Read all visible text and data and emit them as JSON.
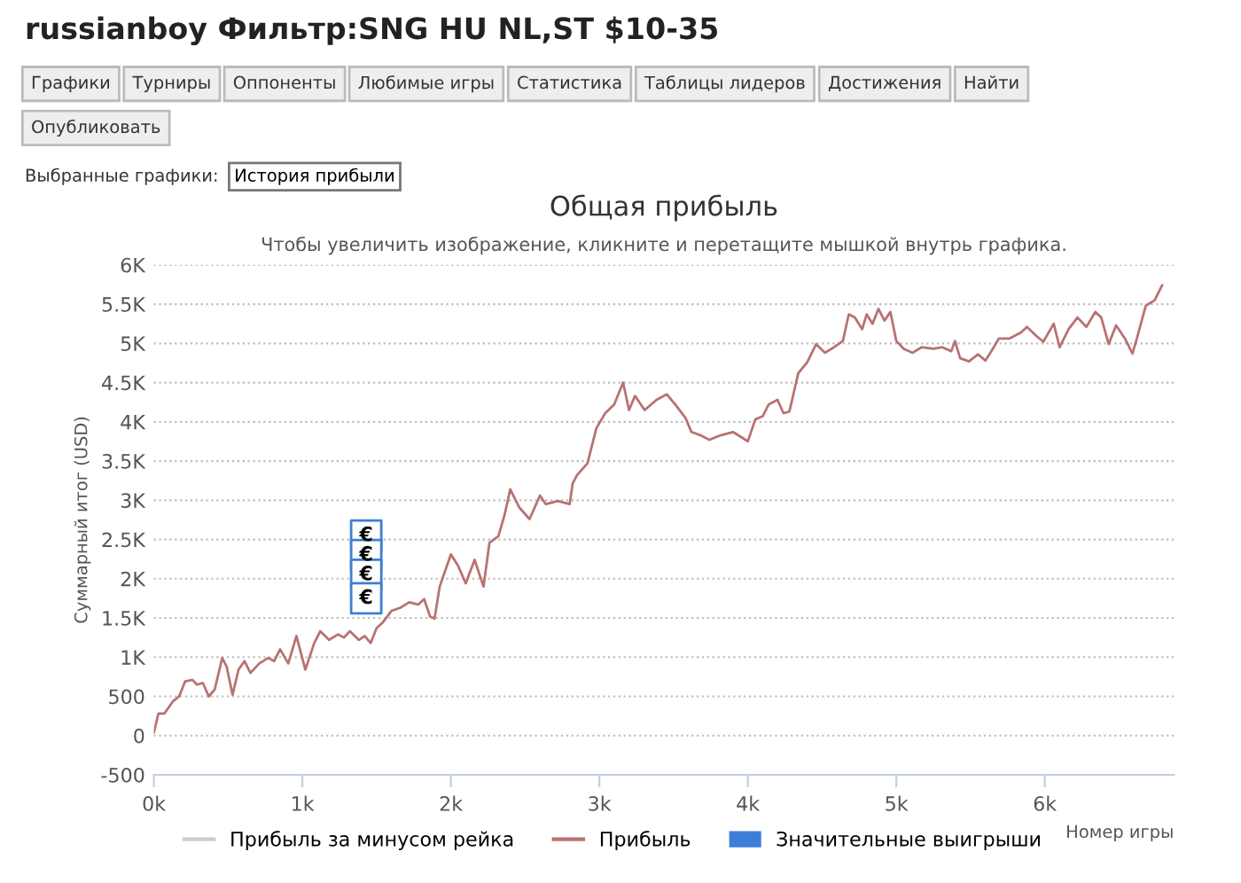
{
  "chart_data": {
    "type": "line",
    "title": "Общая прибыль",
    "subtitle": "Чтобы увеличить изображение, кликните и перетащите мышкой внутрь графика.",
    "xlabel": "Номер игры",
    "ylabel": "Суммарный итог (USD)",
    "annotations": [
      "russianboy Фильтр:SNG HU NL,ST $10-35",
      "Графики",
      "Турниры",
      "Оппоненты",
      "Любимые игры",
      "Статистика",
      "Таблицы лидеров",
      "Достижения",
      "Найти",
      "Опубликовать",
      "Выбранные графики:",
      "История прибыли"
    ],
    "series": [
      {
        "name": "Прибыль за минусом рейка",
        "color": "#cccccc"
      },
      {
        "name": "Прибыль",
        "color": "#b87272",
        "x": [
          0,
          30,
          70,
          130,
          170,
          210,
          260,
          290,
          330,
          370,
          410,
          460,
          490,
          530,
          570,
          610,
          650,
          710,
          770,
          810,
          850,
          905,
          960,
          1020,
          1080,
          1120,
          1180,
          1240,
          1280,
          1320,
          1380,
          1420,
          1460,
          1500,
          1540,
          1600,
          1660,
          1720,
          1780,
          1820,
          1860,
          1890,
          1925,
          2000,
          2050,
          2100,
          2160,
          2220,
          2260,
          2320,
          2360,
          2400,
          2460,
          2530,
          2600,
          2640,
          2720,
          2800,
          2820,
          2850,
          2920,
          2980,
          3040,
          3100,
          3160,
          3200,
          3240,
          3305,
          3385,
          3455,
          3520,
          3580,
          3620,
          3680,
          3740,
          3820,
          3900,
          3960,
          4000,
          4050,
          4100,
          4140,
          4200,
          4240,
          4280,
          4340,
          4400,
          4460,
          4520,
          4580,
          4640,
          4680,
          4720,
          4770,
          4800,
          4840,
          4880,
          4920,
          4960,
          5000,
          5050,
          5110,
          5170,
          5250,
          5310,
          5370,
          5395,
          5430,
          5490,
          5550,
          5600,
          5650,
          5690,
          5760,
          5840,
          5880,
          5940,
          5990,
          6060,
          6100,
          6160,
          6220,
          6280,
          6340,
          6380,
          6430,
          6480,
          6540,
          6590,
          6620,
          6680,
          6740,
          6790
        ],
        "values": [
          40,
          280,
          280,
          440,
          500,
          690,
          710,
          650,
          670,
          500,
          590,
          990,
          880,
          520,
          840,
          950,
          800,
          920,
          990,
          950,
          1100,
          920,
          1270,
          840,
          1180,
          1330,
          1220,
          1290,
          1250,
          1330,
          1220,
          1270,
          1180,
          1370,
          1440,
          1590,
          1630,
          1700,
          1670,
          1740,
          1520,
          1490,
          1900,
          2310,
          2160,
          1940,
          2240,
          1900,
          2460,
          2540,
          2800,
          3140,
          2910,
          2760,
          3060,
          2950,
          2990,
          2950,
          3210,
          3320,
          3470,
          3920,
          4110,
          4220,
          4500,
          4150,
          4330,
          4150,
          4280,
          4350,
          4200,
          4050,
          3870,
          3830,
          3770,
          3830,
          3870,
          3800,
          3750,
          4030,
          4070,
          4220,
          4280,
          4110,
          4130,
          4620,
          4760,
          4990,
          4880,
          4950,
          5030,
          5370,
          5330,
          5180,
          5370,
          5250,
          5440,
          5290,
          5400,
          5030,
          4930,
          4880,
          4950,
          4930,
          4950,
          4900,
          5030,
          4810,
          4770,
          4860,
          4780,
          4930,
          5060,
          5060,
          5140,
          5210,
          5100,
          5020,
          5250,
          4950,
          5180,
          5330,
          5210,
          5400,
          5330,
          4990,
          5230,
          5060,
          4870,
          5060,
          5480,
          5550,
          5740
        ]
      },
      {
        "name": "Значительные выигрыши",
        "color": "#3d7fd6",
        "type": "scatter",
        "marker": "square",
        "x": [
          1430,
          1430,
          1430,
          1430
        ],
        "values": [
          2550,
          2300,
          2050,
          1750
        ],
        "value_labels": [
          "€",
          "€",
          "€",
          "€"
        ]
      }
    ],
    "xlim": [
      0,
      6870
    ],
    "ylim": [
      -500,
      6000
    ],
    "xticks": [
      {
        "value": 0,
        "label": "0k"
      },
      {
        "value": 1000,
        "label": "1k"
      },
      {
        "value": 2000,
        "label": "2k"
      },
      {
        "value": 3000,
        "label": "3k"
      },
      {
        "value": 4000,
        "label": "4k"
      },
      {
        "value": 5000,
        "label": "5k"
      },
      {
        "value": 6000,
        "label": "6k"
      }
    ],
    "yticks": [
      -500,
      0,
      500,
      {
        "value": 1000,
        "label": "1K"
      },
      {
        "value": 1500,
        "label": "1.5K"
      },
      {
        "value": 2000,
        "label": "2K"
      },
      {
        "value": 2500,
        "label": "2.5K"
      },
      {
        "value": 3000,
        "label": "3K"
      },
      {
        "value": 3500,
        "label": "3.5K"
      },
      {
        "value": 4000,
        "label": "4K"
      },
      {
        "value": 4500,
        "label": "4.5K"
      },
      {
        "value": 5000,
        "label": "5K"
      },
      {
        "value": 5500,
        "label": "5.5K"
      },
      {
        "value": 6000,
        "label": "6K"
      }
    ],
    "grid": "y",
    "legend": "bottom",
    "line_style": "solid"
  }
}
